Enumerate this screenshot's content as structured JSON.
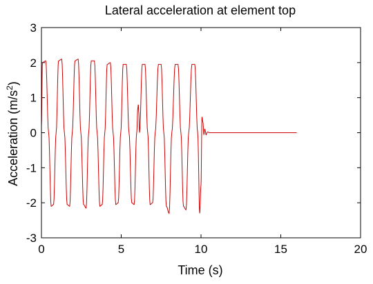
{
  "chart_data": {
    "type": "line",
    "title": "Lateral acceleration at element top",
    "xlabel": "Time (s)",
    "ylabel_main": "Acceleration (m/s",
    "ylabel_sup": "2",
    "ylabel_tail": ")",
    "xlim": [
      0,
      20
    ],
    "ylim": [
      -3,
      3
    ],
    "xticks": [
      0,
      5,
      10,
      15,
      20
    ],
    "yticks": [
      -3,
      -2,
      -1,
      0,
      1,
      2,
      3
    ],
    "grid": false,
    "legend": "none",
    "series": [
      {
        "color": "#cc0000",
        "x": [
          0.0,
          0.06,
          0.27,
          0.45,
          0.61,
          0.76,
          0.92,
          1.07,
          1.27,
          1.44,
          1.61,
          1.77,
          1.93,
          2.1,
          2.3,
          2.47,
          2.64,
          2.8,
          2.96,
          3.12,
          3.32,
          3.49,
          3.66,
          3.81,
          3.97,
          4.12,
          4.32,
          4.49,
          4.66,
          4.81,
          4.97,
          5.12,
          5.32,
          5.49,
          5.66,
          5.81,
          5.97,
          6.04,
          6.07,
          6.1,
          6.15,
          6.32,
          6.49,
          6.66,
          6.81,
          6.97,
          7.13,
          7.33,
          7.5,
          7.67,
          7.83,
          8.0,
          8.17,
          8.38,
          8.56,
          8.74,
          8.9,
          9.06,
          9.23,
          9.43,
          9.61,
          9.79,
          9.92,
          10.0,
          10.06,
          10.12,
          10.18,
          10.24,
          10.32,
          10.4,
          10.55,
          10.8,
          11.5,
          13.0,
          15.0,
          16.0
        ],
        "y": [
          0.2,
          2.0,
          2.05,
          0.0,
          -2.1,
          -2.05,
          0.0,
          2.05,
          2.1,
          0.0,
          -2.05,
          -2.1,
          0.0,
          2.05,
          2.1,
          0.0,
          -2.05,
          -2.15,
          0.0,
          2.05,
          2.05,
          0.0,
          -2.1,
          -2.05,
          0.0,
          1.95,
          2.0,
          0.0,
          -2.05,
          -2.0,
          0.0,
          1.95,
          1.95,
          0.0,
          -2.0,
          -2.05,
          0.0,
          0.7,
          0.8,
          0.6,
          0.0,
          1.95,
          1.95,
          0.0,
          -2.05,
          -2.0,
          0.0,
          1.95,
          1.95,
          0.0,
          -2.1,
          -2.3,
          0.0,
          1.95,
          1.95,
          0.0,
          -2.1,
          -2.2,
          0.0,
          1.95,
          1.95,
          0.0,
          -2.3,
          -1.5,
          0.45,
          0.3,
          -0.05,
          0.1,
          -0.06,
          0.02,
          0.0,
          0.0,
          0.0,
          0.0,
          0.0,
          0.0
        ]
      }
    ]
  }
}
